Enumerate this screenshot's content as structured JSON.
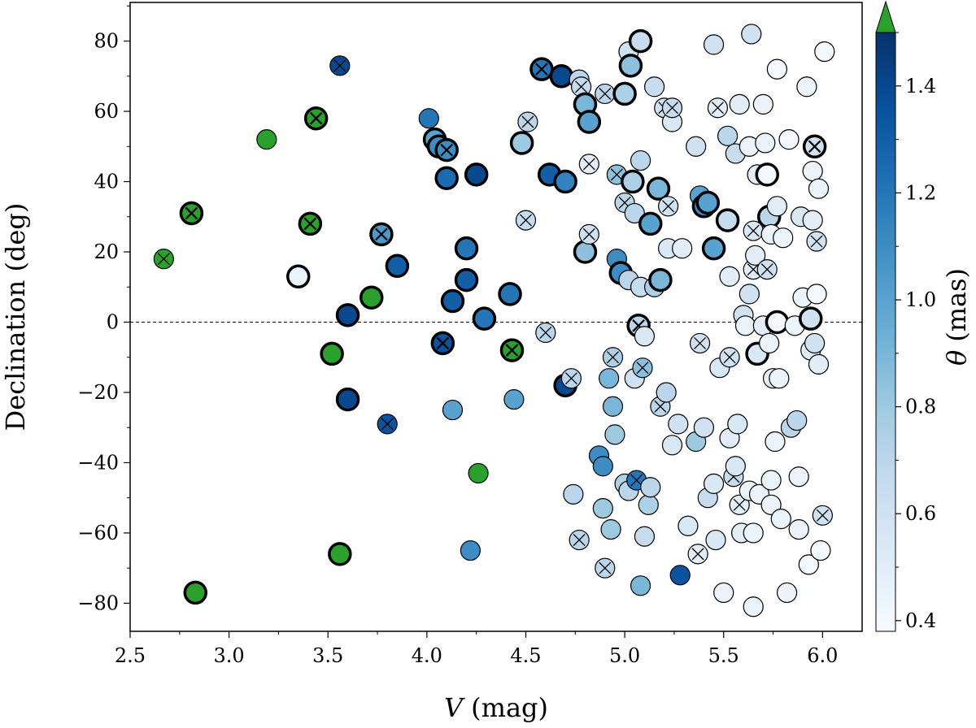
{
  "chart_data": {
    "type": "scatter",
    "title": "",
    "xlabel_var": "V",
    "xlabel_unit": "(mag)",
    "ylabel": "Declination (deg)",
    "colorbar_label_var": "θ",
    "colorbar_label_unit": "(mas)",
    "xlim": [
      2.5,
      6.2
    ],
    "ylim": [
      -88,
      91
    ],
    "xticks": [
      "2.5",
      "3.0",
      "3.5",
      "4.0",
      "4.5",
      "5.0",
      "5.5",
      "6.0"
    ],
    "yticks": [
      "80",
      "60",
      "40",
      "20",
      "0",
      "−20",
      "−40",
      "−60",
      "−80"
    ],
    "colorbar": {
      "cmap": "Blues",
      "range": [
        0.38,
        1.5
      ],
      "ticks": [
        "0.4",
        "0.6",
        "0.8",
        "1.0",
        "1.2",
        "1.4"
      ],
      "over_color": "#2ca02c"
    },
    "reference_line": {
      "y": 0,
      "style": "dashed"
    },
    "marker_legend": {
      "b": "thick black edge",
      "x": "cross marker",
      "g": "theta above colorbar max"
    },
    "points": [
      [
        2.67,
        18,
        "g",
        0,
        1
      ],
      [
        2.81,
        31,
        "g",
        1,
        1
      ],
      [
        2.83,
        -77,
        "g",
        1,
        0
      ],
      [
        3.19,
        52,
        "g",
        0,
        0
      ],
      [
        3.35,
        13,
        0.45,
        1,
        0
      ],
      [
        3.41,
        28,
        "g",
        1,
        1
      ],
      [
        3.44,
        58,
        "g",
        1,
        1
      ],
      [
        3.52,
        -9,
        "g",
        1,
        0
      ],
      [
        3.56,
        -66,
        "g",
        1,
        0
      ],
      [
        3.56,
        73,
        1.4,
        0,
        1
      ],
      [
        3.6,
        2,
        1.4,
        1,
        0
      ],
      [
        3.6,
        -22,
        1.4,
        1,
        0
      ],
      [
        3.72,
        7,
        "g",
        1,
        0
      ],
      [
        3.77,
        25,
        1.05,
        1,
        1
      ],
      [
        3.8,
        -29,
        1.35,
        0,
        1
      ],
      [
        3.85,
        16,
        1.3,
        1,
        0
      ],
      [
        4.01,
        58,
        1.2,
        0,
        0
      ],
      [
        4.04,
        52,
        1.0,
        1,
        0
      ],
      [
        4.06,
        50,
        1.1,
        1,
        0
      ],
      [
        4.08,
        -6,
        1.35,
        1,
        1
      ],
      [
        4.1,
        49,
        1.1,
        1,
        1
      ],
      [
        4.1,
        41,
        1.25,
        1,
        0
      ],
      [
        4.13,
        6,
        1.3,
        1,
        0
      ],
      [
        4.13,
        -25,
        1.0,
        0,
        0
      ],
      [
        4.2,
        21,
        1.2,
        1,
        0
      ],
      [
        4.2,
        12,
        1.3,
        1,
        0
      ],
      [
        4.22,
        -65,
        1.1,
        0,
        0
      ],
      [
        4.25,
        42,
        1.4,
        1,
        0
      ],
      [
        4.26,
        -43,
        "g",
        0,
        0
      ],
      [
        4.29,
        1,
        1.2,
        1,
        0
      ],
      [
        4.42,
        8,
        1.2,
        1,
        0
      ],
      [
        4.43,
        -8,
        "g",
        1,
        1
      ],
      [
        4.44,
        -22,
        1.0,
        0,
        0
      ],
      [
        4.48,
        51,
        0.8,
        1,
        0
      ],
      [
        4.51,
        57,
        0.7,
        0,
        1
      ],
      [
        4.5,
        29,
        0.65,
        0,
        1
      ],
      [
        4.58,
        72,
        1.2,
        1,
        1
      ],
      [
        4.6,
        -3,
        0.7,
        0,
        1
      ],
      [
        4.62,
        42,
        1.3,
        1,
        0
      ],
      [
        4.68,
        70,
        1.4,
        1,
        0
      ],
      [
        4.7,
        40,
        1.15,
        1,
        0
      ],
      [
        4.7,
        -18,
        1.4,
        1,
        0
      ],
      [
        4.73,
        -16,
        0.7,
        0,
        1
      ],
      [
        4.74,
        -49,
        0.7,
        0,
        0
      ],
      [
        4.77,
        -62,
        0.7,
        0,
        1
      ],
      [
        4.77,
        69,
        0.7,
        0,
        0
      ],
      [
        4.78,
        67,
        0.65,
        0,
        1
      ],
      [
        4.8,
        20,
        0.85,
        1,
        0
      ],
      [
        4.8,
        62,
        0.9,
        1,
        0
      ],
      [
        4.82,
        57,
        1.0,
        1,
        0
      ],
      [
        4.82,
        45,
        0.5,
        0,
        1
      ],
      [
        4.82,
        25,
        0.6,
        0,
        1
      ],
      [
        4.87,
        -38,
        1.1,
        0,
        0
      ],
      [
        4.89,
        -53,
        0.8,
        0,
        0
      ],
      [
        4.89,
        -41,
        1.1,
        0,
        0
      ],
      [
        4.9,
        65,
        0.7,
        0,
        1
      ],
      [
        4.9,
        -70,
        0.7,
        0,
        1
      ],
      [
        4.92,
        -16,
        0.9,
        0,
        0
      ],
      [
        4.93,
        -59,
        0.8,
        0,
        0
      ],
      [
        4.94,
        -10,
        0.75,
        0,
        1
      ],
      [
        4.94,
        -24,
        0.9,
        0,
        0
      ],
      [
        4.95,
        -32,
        0.8,
        0,
        0
      ],
      [
        4.96,
        42,
        0.85,
        0,
        1
      ],
      [
        4.96,
        18,
        1.1,
        0,
        0
      ],
      [
        4.98,
        14,
        1.1,
        1,
        0
      ],
      [
        5.0,
        65,
        0.75,
        1,
        0
      ],
      [
        5.0,
        34,
        0.7,
        0,
        1
      ],
      [
        5.0,
        -46,
        0.75,
        0,
        0
      ],
      [
        5.02,
        -48,
        0.7,
        0,
        0
      ],
      [
        5.02,
        77,
        0.6,
        0,
        0
      ],
      [
        5.02,
        12,
        0.7,
        0,
        0
      ],
      [
        5.03,
        73,
        0.85,
        1,
        0
      ],
      [
        5.04,
        40,
        0.75,
        1,
        0
      ],
      [
        5.05,
        31,
        0.7,
        0,
        0
      ],
      [
        5.05,
        -16,
        0.6,
        0,
        0
      ],
      [
        5.06,
        -45,
        1.2,
        0,
        1
      ],
      [
        5.07,
        -1,
        0.7,
        1,
        1
      ],
      [
        5.08,
        80,
        0.65,
        1,
        0
      ],
      [
        5.08,
        10,
        0.65,
        0,
        0
      ],
      [
        5.08,
        -75,
        0.9,
        0,
        0
      ],
      [
        5.08,
        46,
        0.7,
        0,
        0
      ],
      [
        5.09,
        -13,
        0.85,
        0,
        1
      ],
      [
        5.1,
        -4,
        0.55,
        0,
        0
      ],
      [
        5.1,
        -61,
        0.65,
        0,
        0
      ],
      [
        5.12,
        -52,
        0.75,
        0,
        0
      ],
      [
        5.13,
        28,
        1.0,
        1,
        0
      ],
      [
        5.13,
        -47,
        0.7,
        0,
        0
      ],
      [
        5.15,
        10,
        0.75,
        0,
        0
      ],
      [
        5.15,
        67,
        0.65,
        0,
        0
      ],
      [
        5.17,
        38,
        0.9,
        1,
        0
      ],
      [
        5.18,
        12,
        0.9,
        1,
        0
      ],
      [
        5.18,
        -24,
        0.7,
        0,
        1
      ],
      [
        5.2,
        61,
        0.6,
        0,
        1
      ],
      [
        5.21,
        -20,
        0.7,
        0,
        0
      ],
      [
        5.22,
        33,
        0.6,
        0,
        1
      ],
      [
        5.22,
        21,
        0.55,
        0,
        0
      ],
      [
        5.24,
        57,
        0.55,
        0,
        0
      ],
      [
        5.24,
        -35,
        0.55,
        0,
        0
      ],
      [
        5.24,
        61,
        0.65,
        0,
        1
      ],
      [
        5.27,
        -29,
        0.6,
        0,
        0
      ],
      [
        5.28,
        -72,
        1.35,
        0,
        0
      ],
      [
        5.29,
        21,
        0.5,
        0,
        0
      ],
      [
        5.32,
        -58,
        0.55,
        0,
        0
      ],
      [
        5.36,
        -34,
        0.8,
        0,
        0
      ],
      [
        5.36,
        50,
        0.6,
        0,
        0
      ],
      [
        5.37,
        -66,
        0.5,
        0,
        1
      ],
      [
        5.38,
        -6,
        0.6,
        0,
        1
      ],
      [
        5.38,
        36,
        1.0,
        0,
        0
      ],
      [
        5.4,
        33,
        1.1,
        1,
        0
      ],
      [
        5.4,
        -30,
        0.6,
        0,
        0
      ],
      [
        5.42,
        34,
        1.0,
        1,
        0
      ],
      [
        5.42,
        -50,
        0.65,
        0,
        0
      ],
      [
        5.45,
        79,
        0.6,
        0,
        0
      ],
      [
        5.45,
        21,
        1.0,
        1,
        0
      ],
      [
        5.45,
        -46,
        0.55,
        0,
        0
      ],
      [
        5.46,
        -62,
        0.55,
        0,
        0
      ],
      [
        5.47,
        61,
        0.5,
        0,
        1
      ],
      [
        5.48,
        -13,
        0.55,
        0,
        0
      ],
      [
        5.5,
        -77,
        0.45,
        0,
        0
      ],
      [
        5.52,
        53,
        0.7,
        0,
        0
      ],
      [
        5.52,
        29,
        0.65,
        1,
        0
      ],
      [
        5.53,
        -10,
        0.6,
        0,
        1
      ],
      [
        5.53,
        -33,
        0.5,
        0,
        0
      ],
      [
        5.53,
        13,
        0.5,
        0,
        0
      ],
      [
        5.55,
        -44,
        0.65,
        0,
        1
      ],
      [
        5.56,
        48,
        0.65,
        0,
        0
      ],
      [
        5.56,
        -41,
        0.55,
        0,
        0
      ],
      [
        5.57,
        -29,
        0.55,
        0,
        0
      ],
      [
        5.58,
        -52,
        0.5,
        0,
        1
      ],
      [
        5.58,
        62,
        0.5,
        0,
        0
      ],
      [
        5.59,
        -60,
        0.5,
        0,
        0
      ],
      [
        5.6,
        2,
        0.6,
        0,
        0
      ],
      [
        5.61,
        -1,
        0.45,
        0,
        0
      ],
      [
        5.63,
        -48,
        0.45,
        0,
        0
      ],
      [
        5.63,
        8,
        0.6,
        0,
        0
      ],
      [
        5.63,
        50,
        0.45,
        0,
        0
      ],
      [
        5.64,
        82,
        0.6,
        0,
        0
      ],
      [
        5.65,
        -81,
        0.45,
        0,
        0
      ],
      [
        5.65,
        -60,
        0.45,
        0,
        0
      ],
      [
        5.65,
        26,
        0.55,
        0,
        1
      ],
      [
        5.65,
        15,
        0.5,
        0,
        1
      ],
      [
        5.66,
        19,
        0.5,
        0,
        0
      ],
      [
        5.67,
        42,
        0.5,
        0,
        0
      ],
      [
        5.67,
        -9,
        0.55,
        1,
        0
      ],
      [
        5.68,
        -49,
        0.45,
        0,
        0
      ],
      [
        5.7,
        62,
        0.45,
        0,
        0
      ],
      [
        5.7,
        -1,
        0.5,
        0,
        0
      ],
      [
        5.71,
        51,
        0.45,
        0,
        0
      ],
      [
        5.72,
        15,
        0.6,
        0,
        1
      ],
      [
        5.72,
        42,
        0.4,
        1,
        0
      ],
      [
        5.73,
        30,
        0.7,
        1,
        0
      ],
      [
        5.73,
        -6,
        0.45,
        0,
        0
      ],
      [
        5.74,
        -45,
        0.45,
        0,
        0
      ],
      [
        5.74,
        -52,
        0.45,
        0,
        0
      ],
      [
        5.74,
        25,
        0.45,
        0,
        0
      ],
      [
        5.75,
        -16,
        0.5,
        0,
        0
      ],
      [
        5.76,
        -34,
        0.45,
        0,
        0
      ],
      [
        5.77,
        72,
        0.4,
        0,
        0
      ],
      [
        5.77,
        33,
        0.5,
        0,
        0
      ],
      [
        5.77,
        0,
        0.4,
        1,
        0
      ],
      [
        5.78,
        -16,
        0.45,
        0,
        0
      ],
      [
        5.79,
        -56,
        0.45,
        0,
        0
      ],
      [
        5.8,
        24,
        0.45,
        0,
        0
      ],
      [
        5.82,
        -77,
        0.45,
        0,
        0
      ],
      [
        5.83,
        52,
        0.4,
        0,
        0
      ],
      [
        5.84,
        -30,
        0.7,
        0,
        0
      ],
      [
        5.86,
        -1,
        0.45,
        0,
        0
      ],
      [
        5.87,
        -28,
        0.7,
        0,
        0
      ],
      [
        5.88,
        -44,
        0.45,
        0,
        0
      ],
      [
        5.88,
        -59,
        0.45,
        0,
        0
      ],
      [
        5.89,
        30,
        0.55,
        0,
        0
      ],
      [
        5.9,
        7,
        0.45,
        0,
        0
      ],
      [
        5.92,
        67,
        0.45,
        0,
        0
      ],
      [
        5.93,
        -69,
        0.4,
        0,
        0
      ],
      [
        5.94,
        -8,
        0.5,
        0,
        0
      ],
      [
        5.94,
        1,
        0.6,
        1,
        0
      ],
      [
        5.95,
        29,
        0.5,
        0,
        0
      ],
      [
        5.95,
        43,
        0.45,
        0,
        0
      ],
      [
        5.96,
        -6,
        0.6,
        0,
        0
      ],
      [
        5.96,
        50,
        0.6,
        1,
        1
      ],
      [
        5.97,
        23,
        0.6,
        0,
        1
      ],
      [
        5.97,
        8,
        0.4,
        0,
        0
      ],
      [
        5.98,
        -12,
        0.5,
        0,
        0
      ],
      [
        5.98,
        38,
        0.45,
        0,
        0
      ],
      [
        5.99,
        -65,
        0.4,
        0,
        0
      ],
      [
        6.0,
        -55,
        0.6,
        0,
        1
      ],
      [
        6.01,
        77,
        0.4,
        0,
        0
      ]
    ]
  }
}
